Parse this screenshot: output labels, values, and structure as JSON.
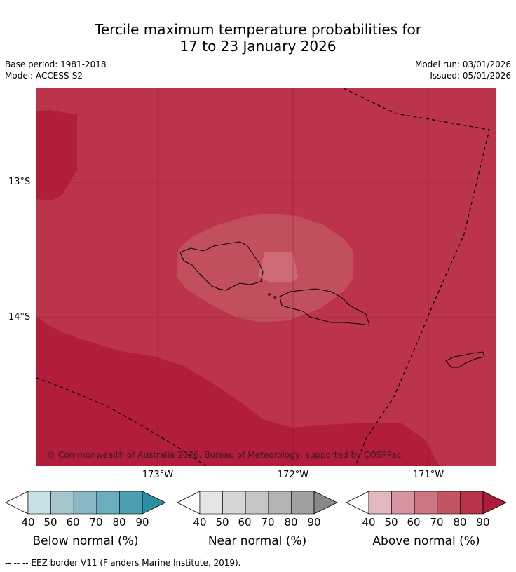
{
  "title_line1": "Tercile maximum temperature probabilities for",
  "title_line2": "17 to 23 January 2026",
  "base_period": "Base period: 1981-2018",
  "model": "Model: ACCESS-S2",
  "model_run": "Model run: 03/01/2026",
  "issued": "Issued: 05/01/2026",
  "lat_labels": [
    "13°S",
    "14°S"
  ],
  "lon_labels": [
    "173°W",
    "172°W",
    "171°W"
  ],
  "credit": "© Commonwealth of Australia 2026, Bureau of Meteorology, supported by COSPPac",
  "colorbars": [
    {
      "label": "Below normal (%)",
      "ticks": [
        "40",
        "50",
        "60",
        "70",
        "80",
        "90"
      ],
      "colors": [
        "#c6e0e6",
        "#a5c6cc",
        "#88b8c4",
        "#6aadbd",
        "#4a9fb2",
        "#2e8ca3"
      ]
    },
    {
      "label": "Near normal (%)",
      "ticks": [
        "40",
        "50",
        "60",
        "70",
        "80",
        "90"
      ],
      "colors": [
        "#e5e5e5",
        "#d6d6d6",
        "#c6c6c6",
        "#b3b3b3",
        "#a0a0a0",
        "#898989"
      ]
    },
    {
      "label": "Above normal (%)",
      "ticks": [
        "40",
        "50",
        "60",
        "70",
        "80",
        "90"
      ],
      "colors": [
        "#e2b8be",
        "#d6969f",
        "#cc7681",
        "#c35563",
        "#b9344b",
        "#aa1c3a"
      ]
    }
  ],
  "footnote": "-- -- -- EEZ border V11 (Flanders Marine Institute, 2019).",
  "map_colors": {
    "above_80": "#bb344b",
    "above_90": "#b11d3a",
    "above_70": "#c24f5d",
    "above_60": "#cc6b76"
  }
}
